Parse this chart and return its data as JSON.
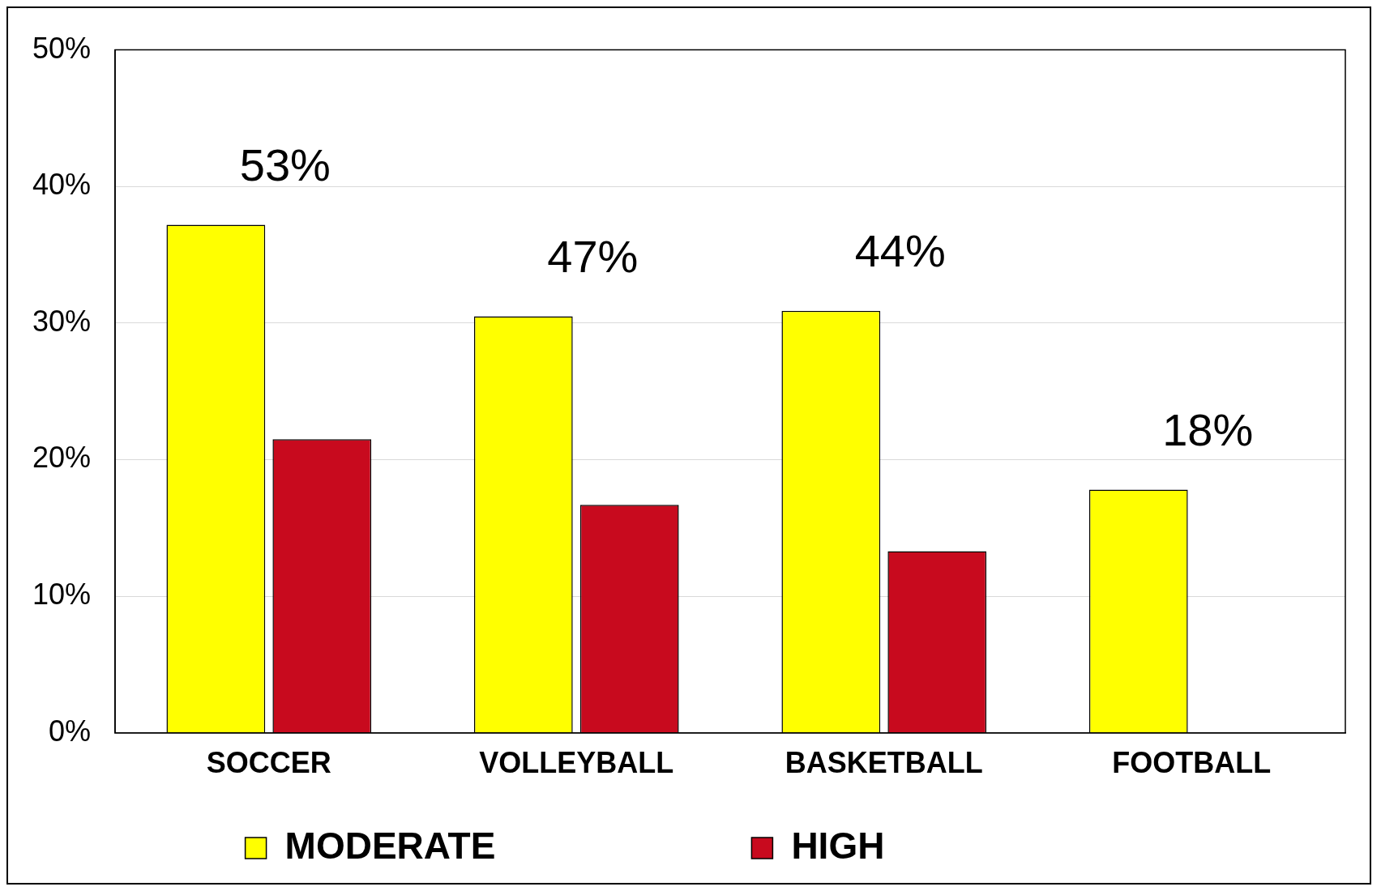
{
  "chart_data": {
    "type": "bar",
    "categories": [
      "SOCCER",
      "VOLLEYBALL",
      "BASKETBALL",
      "FOOTBALL"
    ],
    "series": [
      {
        "name": "MODERATE",
        "color": "#ffff00",
        "values": [
          37.2,
          30.5,
          30.9,
          17.8
        ]
      },
      {
        "name": "HIGH",
        "color": "#c80a1e",
        "values": [
          21.5,
          16.7,
          13.3,
          null
        ]
      }
    ],
    "ylim": [
      0,
      50
    ],
    "yticks": [
      {
        "value": 0,
        "label": "0%"
      },
      {
        "value": 10,
        "label": "10%"
      },
      {
        "value": 20,
        "label": "20%"
      },
      {
        "value": 30,
        "label": "30%"
      },
      {
        "value": 40,
        "label": "40%"
      },
      {
        "value": 50,
        "label": "50%"
      }
    ],
    "grid": "y",
    "legend": "bottom",
    "annotations": [
      "53%",
      "47%",
      "44%",
      "18%"
    ]
  }
}
